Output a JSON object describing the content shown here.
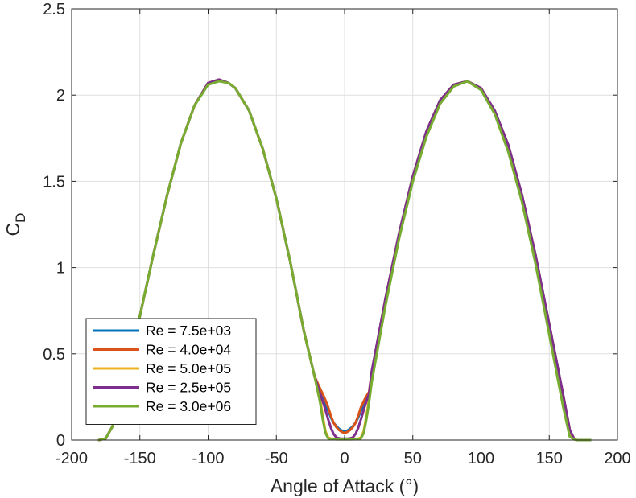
{
  "chart_data": {
    "type": "line",
    "title": "",
    "xlabel": "Angle of Attack (°)",
    "ylabel_main": "C",
    "ylabel_sub": "D",
    "xlim": [
      -200,
      200
    ],
    "ylim": [
      0,
      2.5
    ],
    "xticks": [
      -200,
      -150,
      -100,
      -50,
      0,
      50,
      100,
      150,
      200
    ],
    "xtick_labels": [
      "-200",
      "-150",
      "-100",
      "-50",
      "0",
      "50",
      "100",
      "150",
      "200"
    ],
    "yticks": [
      0,
      0.5,
      1,
      1.5,
      2,
      2.5
    ],
    "ytick_labels": [
      "0",
      "0.5",
      "1",
      "1.5",
      "2",
      "2.5"
    ],
    "grid": true,
    "legend_position": "bottom-left",
    "series": [
      {
        "name": "Re = 7.5e+03",
        "color": "#0072BD",
        "x": [
          -180,
          -175,
          -170,
          -160,
          -150,
          -140,
          -130,
          -120,
          -110,
          -100,
          -92,
          -85,
          -80,
          -70,
          -60,
          -50,
          -40,
          -30,
          -22,
          -18,
          -15,
          -12,
          -10,
          -8,
          -6,
          -4,
          -2,
          0,
          2,
          4,
          6,
          8,
          10,
          12,
          15,
          18,
          20,
          30,
          40,
          50,
          60,
          70,
          80,
          90,
          100,
          110,
          120,
          130,
          140,
          150,
          160,
          165,
          168,
          170,
          175,
          180
        ],
        "y": [
          0,
          0.01,
          0.08,
          0.38,
          0.72,
          1.08,
          1.42,
          1.72,
          1.94,
          2.07,
          2.09,
          2.07,
          2.04,
          1.91,
          1.69,
          1.4,
          1.04,
          0.64,
          0.37,
          0.28,
          0.22,
          0.17,
          0.13,
          0.1,
          0.08,
          0.065,
          0.055,
          0.05,
          0.055,
          0.065,
          0.08,
          0.1,
          0.13,
          0.17,
          0.22,
          0.27,
          0.4,
          0.82,
          1.2,
          1.53,
          1.79,
          1.97,
          2.06,
          2.08,
          2.04,
          1.91,
          1.71,
          1.42,
          1.07,
          0.67,
          0.27,
          0.06,
          0.01,
          0,
          0,
          0
        ]
      },
      {
        "name": "Re = 4.0e+04",
        "color": "#D95319",
        "x": [
          -180,
          -175,
          -170,
          -160,
          -150,
          -140,
          -130,
          -120,
          -110,
          -100,
          -92,
          -85,
          -80,
          -70,
          -60,
          -50,
          -40,
          -30,
          -22,
          -18,
          -15,
          -12,
          -10,
          -8,
          -6,
          -4,
          -2,
          0,
          2,
          4,
          6,
          8,
          10,
          12,
          15,
          18,
          20,
          30,
          40,
          50,
          60,
          70,
          80,
          90,
          100,
          110,
          120,
          130,
          140,
          150,
          160,
          165,
          168,
          170,
          175,
          180
        ],
        "y": [
          0,
          0.01,
          0.08,
          0.38,
          0.72,
          1.08,
          1.42,
          1.72,
          1.94,
          2.07,
          2.09,
          2.07,
          2.04,
          1.91,
          1.69,
          1.4,
          1.04,
          0.64,
          0.37,
          0.3,
          0.25,
          0.19,
          0.14,
          0.1,
          0.075,
          0.058,
          0.047,
          0.04,
          0.047,
          0.058,
          0.075,
          0.1,
          0.14,
          0.19,
          0.24,
          0.28,
          0.4,
          0.82,
          1.2,
          1.53,
          1.79,
          1.97,
          2.06,
          2.08,
          2.04,
          1.91,
          1.71,
          1.42,
          1.07,
          0.67,
          0.27,
          0.06,
          0.01,
          0,
          0,
          0
        ]
      },
      {
        "name": "Re = 5.0e+05",
        "color": "#EDB120",
        "x": [
          -180,
          -175,
          -170,
          -160,
          -150,
          -140,
          -130,
          -120,
          -110,
          -100,
          -92,
          -85,
          -80,
          -70,
          -60,
          -50,
          -40,
          -30,
          -22,
          -18,
          -16,
          -14,
          -12,
          -10,
          -5,
          0,
          5,
          10,
          12,
          14,
          16,
          18,
          20,
          30,
          40,
          50,
          60,
          70,
          80,
          90,
          100,
          110,
          120,
          130,
          140,
          150,
          160,
          165,
          168,
          170,
          175,
          180
        ],
        "y": [
          0,
          0.01,
          0.08,
          0.38,
          0.72,
          1.08,
          1.42,
          1.72,
          1.94,
          2.07,
          2.09,
          2.07,
          2.04,
          1.91,
          1.69,
          1.4,
          1.04,
          0.64,
          0.37,
          0.24,
          0.14,
          0.05,
          0.015,
          0.008,
          0.007,
          0.006,
          0.007,
          0.008,
          0.015,
          0.05,
          0.14,
          0.24,
          0.36,
          0.8,
          1.19,
          1.52,
          1.78,
          1.96,
          2.06,
          2.08,
          2.04,
          1.9,
          1.69,
          1.4,
          1.04,
          0.63,
          0.22,
          0.03,
          0.005,
          0,
          0,
          0
        ]
      },
      {
        "name": "Re = 2.5e+05",
        "color": "#7E2F8E",
        "x": [
          -180,
          -175,
          -170,
          -160,
          -150,
          -140,
          -130,
          -120,
          -110,
          -100,
          -92,
          -85,
          -80,
          -70,
          -60,
          -50,
          -40,
          -30,
          -22,
          -18,
          -15,
          -12,
          -10,
          -8,
          -6,
          -4,
          -2,
          0,
          2,
          4,
          6,
          8,
          10,
          12,
          15,
          18,
          20,
          30,
          40,
          50,
          60,
          70,
          80,
          90,
          100,
          110,
          120,
          130,
          140,
          150,
          160,
          165,
          168,
          170,
          175,
          180
        ],
        "y": [
          0,
          0.01,
          0.08,
          0.38,
          0.72,
          1.08,
          1.42,
          1.72,
          1.94,
          2.07,
          2.09,
          2.07,
          2.04,
          1.91,
          1.69,
          1.4,
          1.04,
          0.64,
          0.37,
          0.27,
          0.2,
          0.12,
          0.07,
          0.035,
          0.015,
          0.01,
          0.008,
          0.008,
          0.008,
          0.01,
          0.015,
          0.035,
          0.07,
          0.12,
          0.2,
          0.27,
          0.4,
          0.82,
          1.2,
          1.53,
          1.79,
          1.97,
          2.06,
          2.08,
          2.04,
          1.91,
          1.71,
          1.42,
          1.07,
          0.67,
          0.27,
          0.06,
          0.01,
          0,
          0,
          0
        ]
      },
      {
        "name": "Re = 3.0e+06",
        "color": "#77AC30",
        "x": [
          -180,
          -175,
          -170,
          -160,
          -150,
          -140,
          -130,
          -120,
          -110,
          -100,
          -92,
          -85,
          -80,
          -70,
          -60,
          -50,
          -40,
          -30,
          -22,
          -18,
          -16,
          -14,
          -12,
          -10,
          -5,
          0,
          5,
          10,
          12,
          14,
          16,
          18,
          20,
          30,
          40,
          50,
          60,
          70,
          80,
          90,
          100,
          110,
          120,
          130,
          140,
          150,
          160,
          165,
          168,
          170,
          175,
          180
        ],
        "y": [
          0,
          0.01,
          0.08,
          0.38,
          0.72,
          1.08,
          1.42,
          1.72,
          1.94,
          2.06,
          2.08,
          2.07,
          2.04,
          1.91,
          1.69,
          1.4,
          1.04,
          0.64,
          0.37,
          0.22,
          0.12,
          0.04,
          0.01,
          0.005,
          0.004,
          0.004,
          0.004,
          0.005,
          0.01,
          0.04,
          0.12,
          0.22,
          0.34,
          0.78,
          1.17,
          1.5,
          1.76,
          1.95,
          2.05,
          2.08,
          2.03,
          1.89,
          1.67,
          1.38,
          1.02,
          0.61,
          0.2,
          0.02,
          0.005,
          0,
          0,
          0
        ]
      }
    ]
  }
}
